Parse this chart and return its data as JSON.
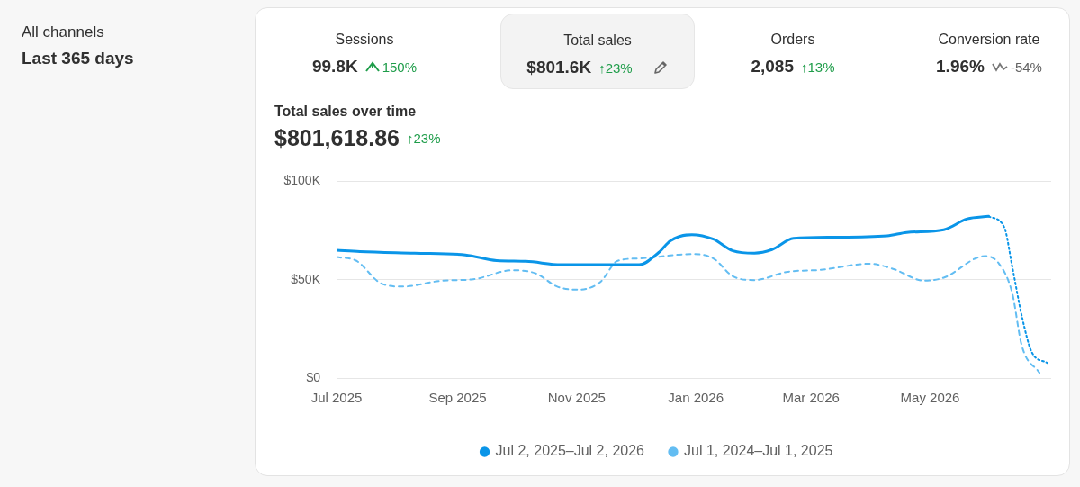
{
  "chart_data": {
    "type": "line",
    "title": "Total sales over time",
    "subtitle": "$801,618.86",
    "annotations": [
      "All channels",
      "Last 365 days",
      "Sessions",
      "99.8K",
      "150%",
      "Total sales",
      "$801.6K",
      "↑23%",
      "Orders",
      "2,085",
      "↑13%",
      "Conversion rate",
      "1.96%",
      "-54%",
      "↑23%"
    ],
    "series": [
      {
        "name": "Jul 2, 2025–Jul 2, 2026",
        "color": "#0a95e8",
        "line_style": "solid",
        "x": [
          "2025-07-01",
          "2025-07-13",
          "2025-08-10",
          "2025-09-05",
          "2025-09-21",
          "2025-10-06",
          "2025-10-24",
          "2025-12-03",
          "2025-12-13",
          "2025-12-19",
          "2025-12-30",
          "2026-01-10",
          "2026-01-20",
          "2026-01-31",
          "2026-02-09",
          "2026-02-20",
          "2026-03-12",
          "2026-04-09",
          "2026-04-19",
          "2026-05-08",
          "2026-05-20",
          "2026-05-31"
        ],
        "values": [
          65,
          64.3,
          63.5,
          62.6,
          59.7,
          59.3,
          57.6,
          57.6,
          63.8,
          69.8,
          72.9,
          70.6,
          64.7,
          63.5,
          65.3,
          71,
          71.6,
          72.3,
          74,
          75.4,
          80.9,
          82.2
        ]
      },
      {
        "color": "#0a95e8",
        "line_style": "dotted",
        "x": [
          "2026-05-31",
          "2026-06-08",
          "2026-06-12",
          "2026-06-17",
          "2026-06-22",
          "2026-06-30"
        ],
        "values": [
          82.2,
          76.6,
          57,
          31.4,
          13.3,
          7.7
        ]
      },
      {
        "name": "Jul 1, 2024–Jul 1, 2025",
        "color": "#63bdf2",
        "line_style": "dashed",
        "x": [
          "2025-07-01",
          "2025-07-11",
          "2025-07-24",
          "2025-08-04",
          "2025-08-24",
          "2025-09-09",
          "2025-09-29",
          "2025-10-11",
          "2025-10-22",
          "2025-11-02",
          "2025-11-13",
          "2025-11-22",
          "2025-12-03",
          "2025-12-30",
          "2026-01-10",
          "2026-01-20",
          "2026-01-31",
          "2026-02-17",
          "2026-03-06",
          "2026-03-31",
          "2026-04-12",
          "2026-04-28",
          "2026-05-08",
          "2026-05-29",
          "2026-06-05",
          "2026-06-12",
          "2026-06-17",
          "2026-06-26"
        ],
        "values": [
          61.5,
          59.7,
          48,
          46.5,
          49.5,
          50.2,
          54.8,
          53.2,
          46.5,
          44.9,
          48.7,
          59.6,
          60.8,
          63,
          60.8,
          51.7,
          49.8,
          54,
          55,
          58.1,
          55.5,
          49.5,
          51,
          62,
          58.5,
          43.4,
          16.3,
          2.7
        ]
      }
    ],
    "xlim": [
      "2025-07-01",
      "2026-07-02"
    ],
    "xticks": [
      {
        "value": "2025-07-01",
        "label": "Jul 2025"
      },
      {
        "value": "2025-09-01",
        "label": "Sep 2025"
      },
      {
        "value": "2025-11-01",
        "label": "Nov 2025"
      },
      {
        "value": "2026-01-01",
        "label": "Jan 2026"
      },
      {
        "value": "2026-03-01",
        "label": "Mar 2026"
      },
      {
        "value": "2026-05-01",
        "label": "May 2026"
      }
    ],
    "ylim": [
      0,
      100
    ],
    "yticks": [
      {
        "value": 0,
        "label": "$0"
      },
      {
        "value": 50,
        "label": "$50K"
      },
      {
        "value": 100,
        "label": "$100K"
      }
    ],
    "grid": "y",
    "legend": "bottom",
    "marker": "none"
  }
}
